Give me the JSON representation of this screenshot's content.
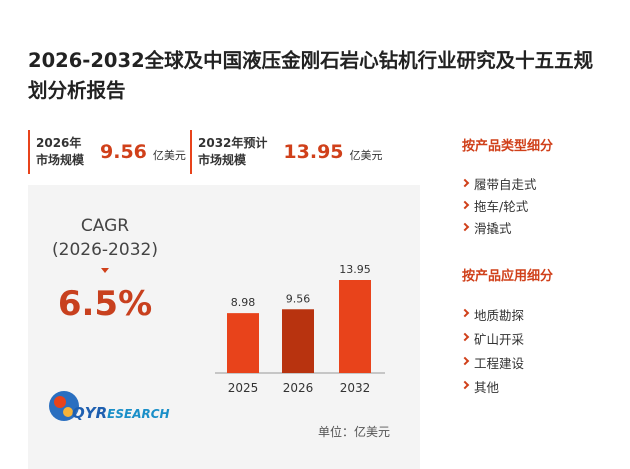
{
  "title": "2026-2032全球及中国液压金刚石岩心钻机行业研究及十五五规划分析报告",
  "stats": [
    {
      "label": [
        "2026年",
        "市场规模"
      ],
      "value": 9.56,
      "unit": "亿美元"
    },
    {
      "label": [
        "2032年预计",
        "市场规模"
      ],
      "value": 13.95,
      "unit": "亿美元"
    }
  ],
  "cagr": {
    "label": "CAGR",
    "period": "(2026-2032)",
    "value": "6.5%"
  },
  "logo": {
    "part1": "QYR",
    "part2": "ESEARCH"
  },
  "sidebar": [
    {
      "heading": "按产品类型细分",
      "items": [
        "履带自走式",
        "拖车/轮式",
        "滑撬式"
      ]
    },
    {
      "heading": "按产品应用细分",
      "items": [
        "地质勘探",
        "矿山开采",
        "工程建设",
        "其他"
      ]
    }
  ],
  "chart_data": {
    "type": "bar",
    "categories": [
      "2025",
      "2026",
      "2032"
    ],
    "values": [
      8.98,
      9.56,
      13.95
    ],
    "colors": [
      "#e8431b",
      "#b8330f",
      "#e8431b"
    ],
    "unit_label": "单位：亿美元"
  }
}
